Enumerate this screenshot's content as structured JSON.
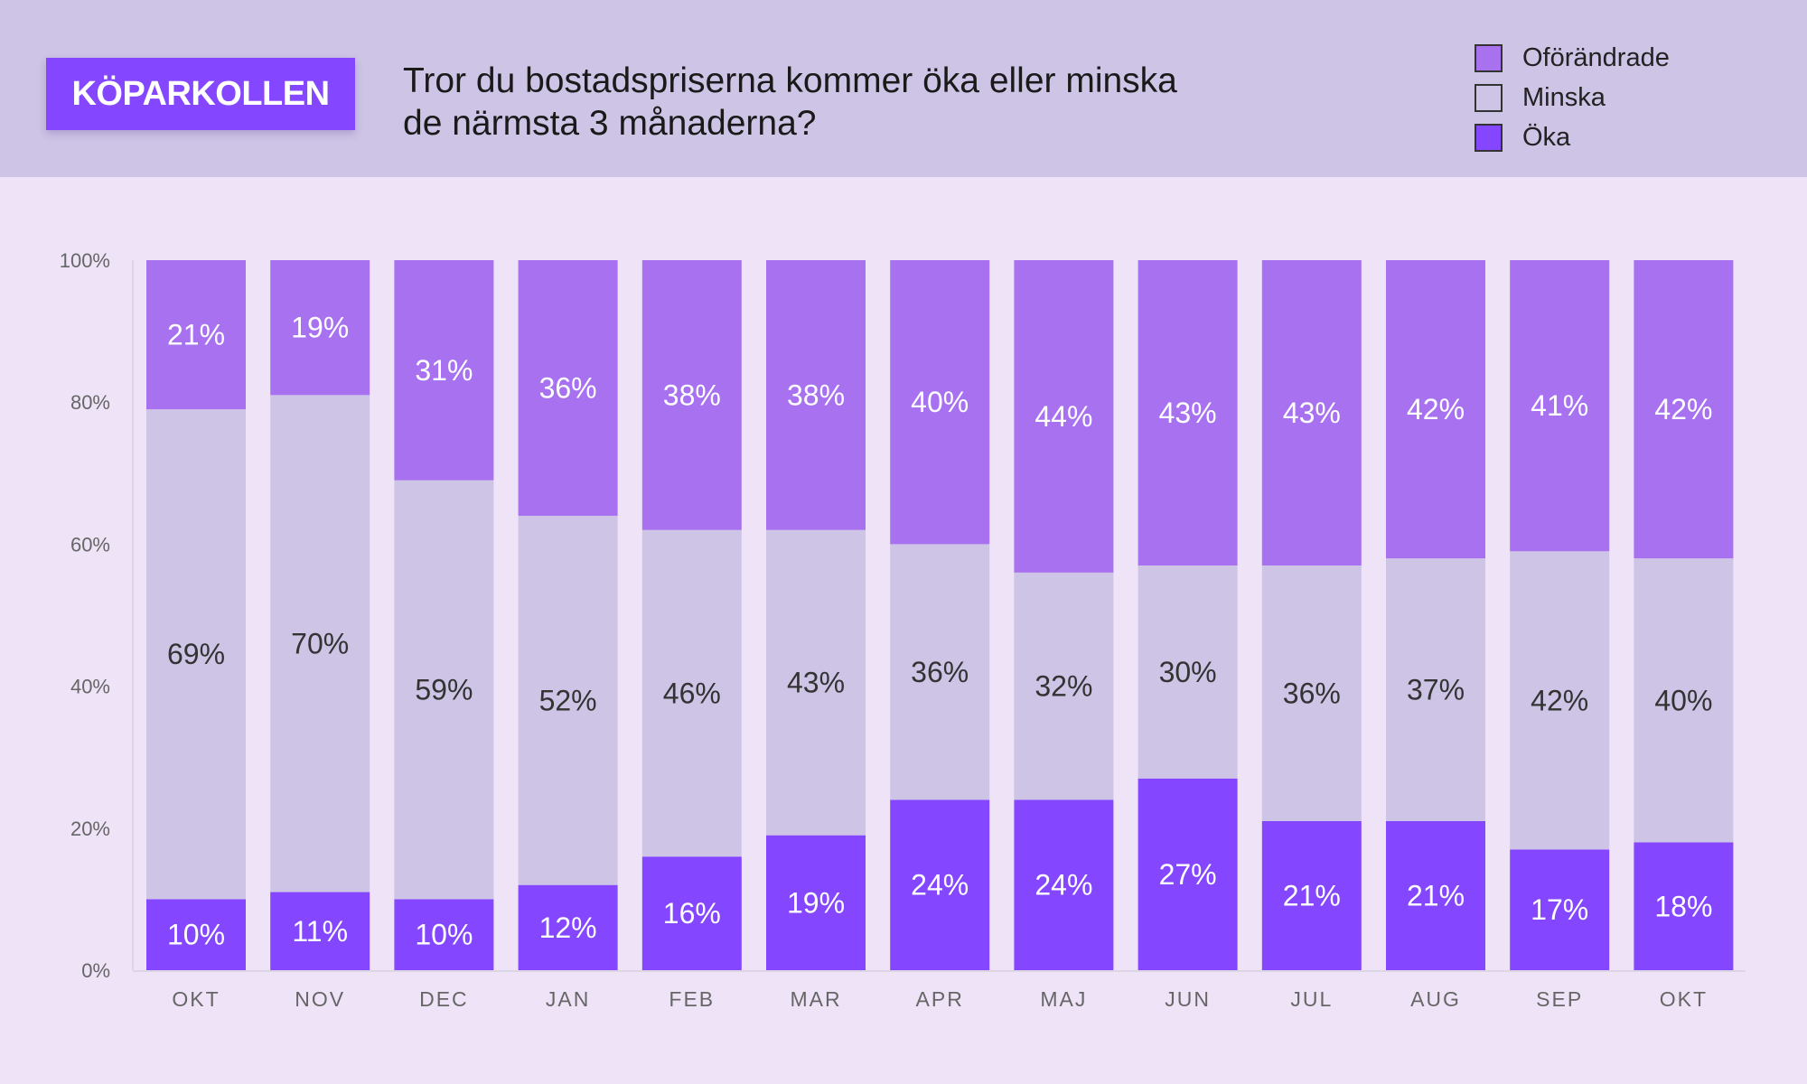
{
  "header": {
    "brand": "KÖPARKOLLEN",
    "title_line1": "Tror du bostadspriserna kommer öka eller minska",
    "title_line2": "de närmsta 3 månaderna?"
  },
  "colors": {
    "header_bg": "#cec4e6",
    "page_bg": "#efe4f7",
    "brand": "#8447ff",
    "oforandrade": "#a771f0",
    "minska": "#cec4e6",
    "oka": "#8447ff"
  },
  "chart_data": {
    "type": "bar",
    "stacked": true,
    "title": "Tror du bostadspriserna kommer öka eller minska de närmsta 3 månaderna?",
    "xlabel": "",
    "ylabel": "",
    "ylim": [
      0,
      100
    ],
    "yticks": [
      "0%",
      "20%",
      "40%",
      "60%",
      "80%",
      "100%"
    ],
    "legend_position": "top-right",
    "grid": false,
    "categories": [
      "OKT",
      "NOV",
      "DEC",
      "JAN",
      "FEB",
      "MAR",
      "APR",
      "MAJ",
      "JUN",
      "JUL",
      "AUG",
      "SEP",
      "OKT"
    ],
    "series": [
      {
        "name": "Öka",
        "color": "#8447ff",
        "label_color": "#ffffff",
        "values": [
          10,
          11,
          10,
          12,
          16,
          19,
          24,
          24,
          27,
          21,
          21,
          17,
          18
        ]
      },
      {
        "name": "Minska",
        "color": "#cec4e6",
        "label_color": "#333333",
        "values": [
          69,
          70,
          59,
          52,
          46,
          43,
          36,
          32,
          30,
          36,
          37,
          42,
          40
        ]
      },
      {
        "name": "Oförändrade",
        "color": "#a771f0",
        "label_color": "#ffffff",
        "values": [
          21,
          19,
          31,
          36,
          38,
          38,
          40,
          44,
          43,
          43,
          42,
          41,
          42
        ]
      }
    ]
  },
  "legend": [
    {
      "name": "Oförändrade",
      "color": "#a771f0"
    },
    {
      "name": "Minska",
      "color": "#cec4e6"
    },
    {
      "name": "Öka",
      "color": "#8447ff"
    }
  ]
}
